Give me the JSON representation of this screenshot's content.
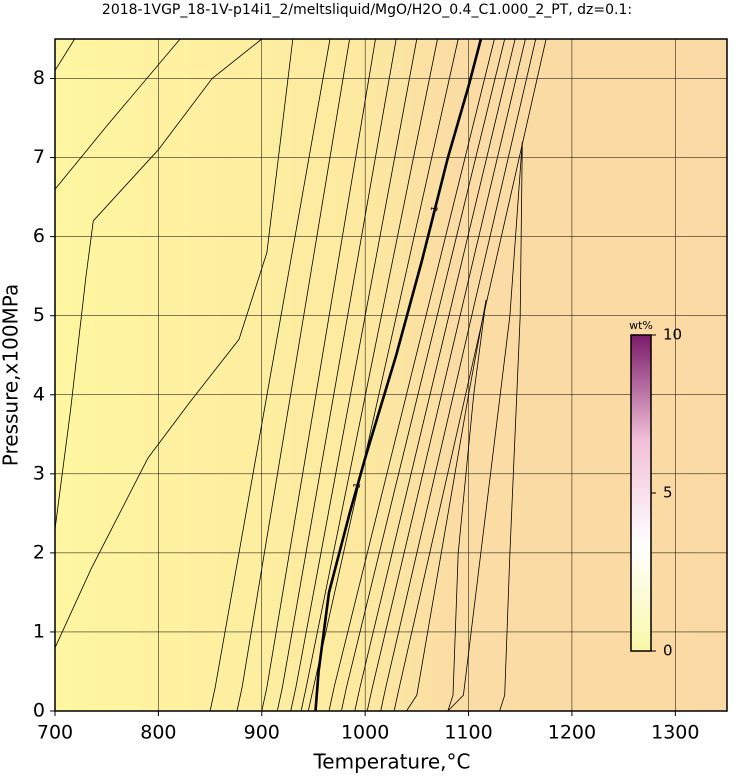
{
  "chart_data": {
    "type": "contour",
    "title": "2018-1VGP_18-1V-p14i1_2/meltsliquid/MgO/H2O_0.4_C1.000_2_PT, dz=0.1:",
    "x_label": "Temperature,°C",
    "y_label": "Pressure,x100MPa",
    "xlim": [
      700,
      1350
    ],
    "ylim": [
      0,
      8.5
    ],
    "xticks": [
      700,
      800,
      900,
      1000,
      1100,
      1200,
      1300
    ],
    "yticks": [
      0,
      1,
      2,
      3,
      4,
      5,
      6,
      7,
      8
    ],
    "grid": true,
    "line_color": "#000000",
    "colorbar": {
      "label": "wt%",
      "clim": [
        0,
        10
      ],
      "ticks": [
        0,
        5,
        10
      ],
      "colors": [
        "#f8f8a8",
        "#ffffff",
        "#f2c0d8",
        "#7a1a6a"
      ]
    },
    "series": [
      {
        "x": [
          952,
          955,
          965,
          985,
          1000,
          1030,
          1055,
          1080,
          1100,
          1112
        ],
        "y": [
          0,
          0.5,
          1.5,
          2.5,
          3.2,
          4.5,
          5.7,
          7,
          7.9,
          8.5
        ],
        "bold": true,
        "label": "1"
      },
      {
        "x": [
          700,
          719
        ],
        "y": [
          8.1,
          8.5
        ]
      },
      {
        "x": [
          700,
          750,
          821
        ],
        "y": [
          6.6,
          7.4,
          8.5
        ]
      },
      {
        "x": [
          700,
          715,
          730,
          737,
          800,
          852,
          900
        ],
        "y": [
          2.3,
          3.8,
          5.5,
          6.2,
          7.1,
          8,
          8.5
        ]
      },
      {
        "x": [
          700,
          735,
          790,
          830,
          878,
          905,
          930
        ],
        "y": [
          0.8,
          1.8,
          3.2,
          3.9,
          4.7,
          5.8,
          8.5
        ]
      },
      {
        "x": [
          850,
          855,
          966
        ],
        "y": [
          0,
          0.3,
          8.5
        ]
      },
      {
        "x": [
          876,
          881,
          985
        ],
        "y": [
          0,
          0.3,
          8.5
        ]
      },
      {
        "x": [
          900,
          905,
          1010
        ],
        "y": [
          0,
          0.3,
          8.5
        ]
      },
      {
        "x": [
          915,
          920,
          1030
        ],
        "y": [
          0,
          0.3,
          8.5
        ]
      },
      {
        "x": [
          928,
          933,
          1050
        ],
        "y": [
          0,
          0.3,
          8.5
        ]
      },
      {
        "x": [
          938,
          943,
          1070
        ],
        "y": [
          0,
          0.3,
          8.5
        ]
      },
      {
        "x": [
          945,
          950,
          1090
        ],
        "y": [
          0,
          0.3,
          8.5
        ]
      },
      {
        "x": [
          965,
          970,
          1125
        ],
        "y": [
          0,
          0.3,
          8.5
        ]
      },
      {
        "x": [
          977,
          982,
          1135
        ],
        "y": [
          0,
          0.3,
          8.5
        ]
      },
      {
        "x": [
          990,
          995,
          1145
        ],
        "y": [
          0,
          0.3,
          8.5
        ]
      },
      {
        "x": [
          1002,
          1007,
          1155
        ],
        "y": [
          0,
          0.3,
          8.5
        ]
      },
      {
        "x": [
          1015,
          1020,
          1165
        ],
        "y": [
          0,
          0.3,
          8.5
        ]
      },
      {
        "x": [
          1028,
          1033,
          1175
        ],
        "y": [
          0,
          0.3,
          8.5
        ]
      },
      {
        "x": [
          1040,
          1050,
          1100,
          1117,
          1105,
          1090,
          1085,
          1080
        ],
        "y": [
          0,
          0.2,
          4,
          5.2,
          4,
          2,
          0.2,
          0
        ]
      },
      {
        "x": [
          1080,
          1095,
          1140,
          1152,
          1150,
          1140,
          1135,
          1130
        ],
        "y": [
          0,
          0.2,
          5,
          7.2,
          5,
          2,
          0.2,
          0
        ]
      }
    ]
  }
}
